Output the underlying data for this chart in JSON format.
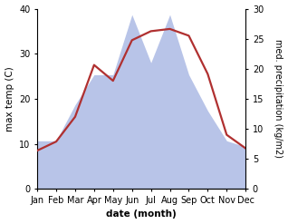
{
  "months": [
    "Jan",
    "Feb",
    "Mar",
    "Apr",
    "May",
    "Jun",
    "Jul",
    "Aug",
    "Sep",
    "Oct",
    "Nov",
    "Dec"
  ],
  "temperature": [
    8.5,
    10.5,
    16.0,
    27.5,
    24.0,
    33.0,
    35.0,
    35.5,
    34.0,
    25.5,
    12.0,
    9.0
  ],
  "precipitation": [
    8.0,
    8.0,
    14.0,
    19.0,
    19.0,
    29.0,
    21.0,
    29.0,
    19.0,
    13.0,
    8.0,
    7.0
  ],
  "temp_color": "#b03030",
  "precip_color": "#b8c4e8",
  "temp_ylim": [
    0,
    40
  ],
  "precip_ylim": [
    0,
    30
  ],
  "temp_yticks": [
    0,
    10,
    20,
    30,
    40
  ],
  "precip_yticks": [
    0,
    5,
    10,
    15,
    20,
    25,
    30
  ],
  "ylabel_left": "max temp (C)",
  "ylabel_right": "med. precipitation (kg/m2)",
  "xlabel": "date (month)",
  "label_fontsize": 7.5,
  "tick_fontsize": 7.0
}
